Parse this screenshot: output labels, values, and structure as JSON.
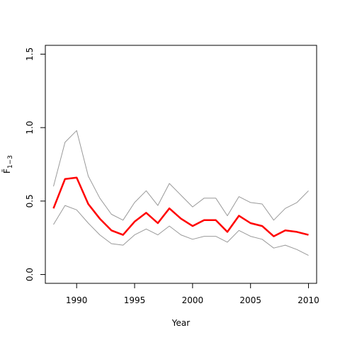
{
  "chart_data": {
    "type": "line",
    "title": "",
    "xlabel": "Year",
    "ylabel": "F̄",
    "ylabel_subscript": "1−3",
    "xlim": [
      1987.3,
      2010.7
    ],
    "ylim": [
      -0.06,
      1.56
    ],
    "x_ticks": [
      1990,
      1995,
      2000,
      2005,
      2010
    ],
    "x_tick_labels": [
      "1990",
      "1995",
      "2000",
      "2005",
      "2010"
    ],
    "y_ticks": [
      0.0,
      0.5,
      1.0,
      1.5
    ],
    "y_tick_labels": [
      "0.0",
      "0.5",
      "1.0",
      "1.5"
    ],
    "grid": false,
    "x": [
      1988,
      1989,
      1990,
      1991,
      1992,
      1993,
      1994,
      1995,
      1996,
      1997,
      1998,
      1999,
      2000,
      2001,
      2002,
      2003,
      2004,
      2005,
      2006,
      2007,
      2008,
      2009,
      2010
    ],
    "series": [
      {
        "values": [
          0.6,
          0.9,
          0.98,
          0.67,
          0.52,
          0.41,
          0.37,
          0.49,
          0.57,
          0.47,
          0.62,
          0.54,
          0.46,
          0.52,
          0.52,
          0.4,
          0.53,
          0.49,
          0.48,
          0.37,
          0.45,
          0.49,
          0.57
        ],
        "color": "#999999",
        "style": "upper-bound"
      },
      {
        "values": [
          0.45,
          0.65,
          0.66,
          0.48,
          0.38,
          0.3,
          0.27,
          0.36,
          0.42,
          0.35,
          0.45,
          0.38,
          0.33,
          0.37,
          0.37,
          0.29,
          0.4,
          0.35,
          0.33,
          0.26,
          0.3,
          0.29,
          0.27
        ],
        "color": "#ff0000",
        "style": "estimate"
      },
      {
        "values": [
          0.34,
          0.47,
          0.44,
          0.35,
          0.27,
          0.21,
          0.2,
          0.27,
          0.31,
          0.27,
          0.33,
          0.27,
          0.24,
          0.26,
          0.26,
          0.22,
          0.3,
          0.26,
          0.24,
          0.18,
          0.2,
          0.17,
          0.13
        ],
        "color": "#999999",
        "style": "lower-bound"
      }
    ]
  }
}
